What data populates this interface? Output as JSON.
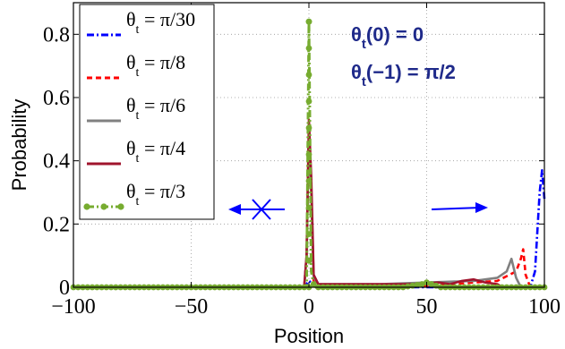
{
  "chart_data": {
    "type": "line",
    "xlabel": "Position",
    "ylabel": "Probability",
    "xlim": [
      -100,
      100
    ],
    "ylim": [
      0,
      0.9
    ],
    "x_ticks": [
      {
        "value": -100,
        "label": "−100"
      },
      {
        "value": -50,
        "label": "−50"
      },
      {
        "value": 0,
        "label": "0"
      },
      {
        "value": 50,
        "label": "50"
      },
      {
        "value": 100,
        "label": "100"
      }
    ],
    "y_ticks": [
      {
        "value": 0,
        "label": "0"
      },
      {
        "value": 0.2,
        "label": "0.2"
      },
      {
        "value": 0.4,
        "label": "0.4"
      },
      {
        "value": 0.6,
        "label": "0.6"
      },
      {
        "value": 0.8,
        "label": "0.8"
      }
    ],
    "grid": true,
    "legend_position": "top-left",
    "series": [
      {
        "name": "θt = π/30",
        "name_main": "θ",
        "name_sub": "t",
        "name_tail": " = π/30",
        "color": "#0000ff",
        "style": "dashdot",
        "marker": "none",
        "points": [
          [
            -100,
            0
          ],
          [
            -2,
            0
          ],
          [
            0,
            0.02
          ],
          [
            2,
            0.01
          ],
          [
            4,
            0
          ],
          [
            94,
            0
          ],
          [
            96,
            0.05
          ],
          [
            98,
            0.3
          ],
          [
            99,
            0.37
          ],
          [
            100,
            0.28
          ]
        ]
      },
      {
        "name": "θt = π/8",
        "name_main": "θ",
        "name_sub": "t",
        "name_tail": " = π/8",
        "color": "#ff0000",
        "style": "dashed",
        "marker": "none",
        "points": [
          [
            -100,
            0
          ],
          [
            -2,
            0
          ],
          [
            -1,
            0.1
          ],
          [
            0,
            0.5
          ],
          [
            1,
            0.3
          ],
          [
            2,
            0.02
          ],
          [
            4,
            0
          ],
          [
            40,
            0
          ],
          [
            60,
            0.01
          ],
          [
            80,
            0.02
          ],
          [
            88,
            0.05
          ],
          [
            90,
            0.09
          ],
          [
            91,
            0.12
          ],
          [
            92,
            0.04
          ],
          [
            94,
            0
          ],
          [
            100,
            0
          ]
        ]
      },
      {
        "name": "θt = π/6",
        "name_main": "θ",
        "name_sub": "t",
        "name_tail": " = π/6",
        "color": "#808080",
        "style": "solid",
        "marker": "none",
        "points": [
          [
            -100,
            0
          ],
          [
            -2,
            0
          ],
          [
            -1,
            0.1
          ],
          [
            0,
            0.5
          ],
          [
            1,
            0.3
          ],
          [
            2,
            0.03
          ],
          [
            4,
            0.01
          ],
          [
            30,
            0.01
          ],
          [
            50,
            0.015
          ],
          [
            70,
            0.02
          ],
          [
            80,
            0.03
          ],
          [
            84,
            0.05
          ],
          [
            86,
            0.09
          ],
          [
            88,
            0.03
          ],
          [
            90,
            0
          ],
          [
            100,
            0
          ]
        ]
      },
      {
        "name": "θt = π/4",
        "name_main": "θ",
        "name_sub": "t",
        "name_tail": " = π/4",
        "color": "#a0142d",
        "style": "solid",
        "marker": "none",
        "points": [
          [
            -100,
            0
          ],
          [
            -2,
            0
          ],
          [
            -1,
            0.1
          ],
          [
            0,
            0.53
          ],
          [
            1,
            0.35
          ],
          [
            2,
            0.04
          ],
          [
            4,
            0.01
          ],
          [
            30,
            0.01
          ],
          [
            45,
            0.01
          ],
          [
            55,
            0.015
          ],
          [
            60,
            0.01
          ],
          [
            65,
            0.02
          ],
          [
            70,
            0.025
          ],
          [
            75,
            0.015
          ],
          [
            80,
            0.01
          ],
          [
            82,
            0
          ],
          [
            100,
            0
          ]
        ]
      },
      {
        "name": "θt = π/3",
        "name_main": "θ",
        "name_sub": "t",
        "name_tail": " = π/3",
        "color": "#77ac30",
        "style": "dashdot",
        "marker": "circle",
        "points": [
          [
            -100,
            0
          ],
          [
            -1,
            0
          ],
          [
            0,
            0.84
          ],
          [
            1,
            0.05
          ],
          [
            2,
            0.01
          ],
          [
            3,
            0
          ],
          [
            40,
            0
          ],
          [
            48,
            0.01
          ],
          [
            50,
            0.015
          ],
          [
            52,
            0.01
          ],
          [
            56,
            0
          ],
          [
            100,
            0
          ]
        ]
      }
    ],
    "annotations": [
      {
        "main": "θ",
        "sub": "t",
        "tail": "(0)  = 0"
      },
      {
        "main": "θ",
        "sub": "t",
        "tail": "(−1) = π/2"
      }
    ],
    "arrows": [
      {
        "direction": "left",
        "crossed": true,
        "color": "#0000ff"
      },
      {
        "direction": "right",
        "crossed": false,
        "color": "#0000ff"
      }
    ]
  }
}
